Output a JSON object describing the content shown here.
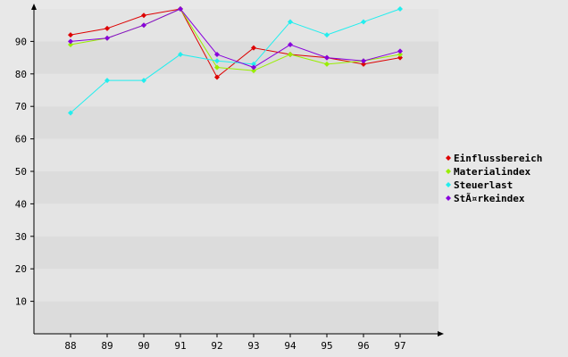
{
  "chart_data": {
    "type": "line",
    "title": "",
    "xlabel": "",
    "ylabel": "",
    "x": [
      "88",
      "89",
      "90",
      "91",
      "92",
      "93",
      "94",
      "95",
      "96",
      "97"
    ],
    "ylim": [
      0,
      100
    ],
    "yticks": [
      10,
      20,
      30,
      40,
      50,
      60,
      70,
      80,
      90
    ],
    "grid": "horizontal bands",
    "legend_position": "right",
    "series": [
      {
        "name": "Einflussbereich",
        "color": "#dd0000",
        "values": [
          92,
          94,
          98,
          100,
          79,
          88,
          86,
          85,
          83,
          85
        ]
      },
      {
        "name": "Materialindex",
        "color": "#99ee00",
        "values": [
          89,
          91,
          95,
          100,
          82,
          81,
          86,
          83,
          84,
          86
        ]
      },
      {
        "name": "Steuerlast",
        "color": "#22eeee",
        "values": [
          68,
          78,
          78,
          86,
          84,
          83,
          96,
          92,
          96,
          100
        ]
      },
      {
        "name": "StÃ¤rkeindex",
        "color": "#8800dd",
        "values": [
          90,
          91,
          95,
          100,
          86,
          82,
          89,
          85,
          84,
          87
        ]
      }
    ]
  }
}
